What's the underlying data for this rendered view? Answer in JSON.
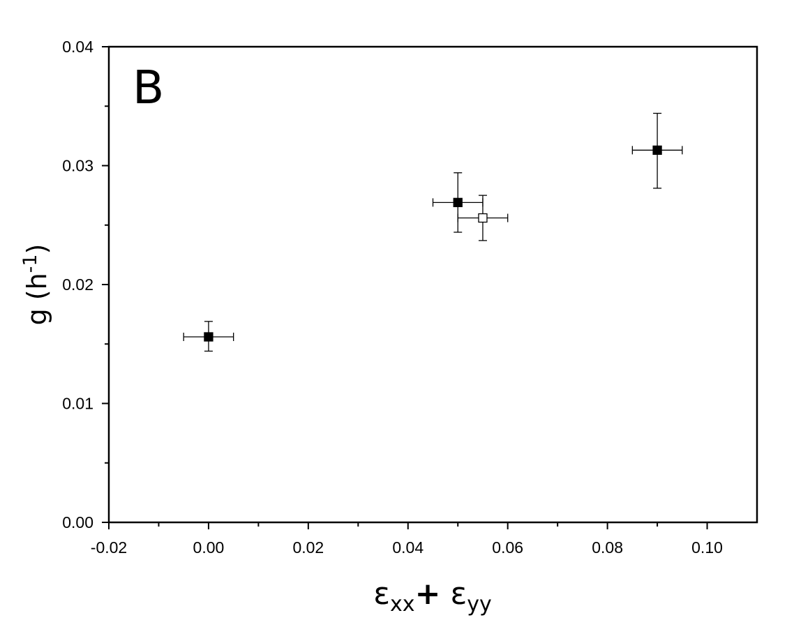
{
  "chart_data": {
    "type": "scatter",
    "panel_label": "B",
    "xlabel": {
      "base1": "ε",
      "sub1": "xx",
      "plus": "+",
      "base2": "ε",
      "sub2": "yy"
    },
    "ylabel": {
      "text": "g (h",
      "sup": "-1",
      "close": ")"
    },
    "xlim": [
      -0.02,
      0.11
    ],
    "ylim": [
      0.0,
      0.04
    ],
    "x_ticks": [
      -0.02,
      0.0,
      0.02,
      0.04,
      0.06,
      0.08,
      0.1
    ],
    "x_tick_labels": [
      "-0.02",
      "0.00",
      "0.02",
      "0.04",
      "0.06",
      "0.08",
      "0.10"
    ],
    "y_ticks": [
      0.0,
      0.01,
      0.02,
      0.03,
      0.04
    ],
    "y_tick_labels": [
      "0.00",
      "0.01",
      "0.02",
      "0.03",
      "0.04"
    ],
    "grid": false,
    "series": [
      {
        "marker": "filled-square",
        "color": "#000000",
        "points": [
          {
            "x": 0.0,
            "y": 0.0156,
            "xerr": 0.005,
            "yerr_low": 0.0012,
            "yerr_high": 0.0013
          },
          {
            "x": 0.05,
            "y": 0.0269,
            "xerr": 0.005,
            "yerr_low": 0.0025,
            "yerr_high": 0.0025
          },
          {
            "x": 0.09,
            "y": 0.0313,
            "xerr": 0.005,
            "yerr_low": 0.0032,
            "yerr_high": 0.0031
          }
        ]
      },
      {
        "marker": "open-square",
        "color": "#000000",
        "points": [
          {
            "x": 0.055,
            "y": 0.0256,
            "xerr": 0.005,
            "yerr_low": 0.0019,
            "yerr_high": 0.0019
          }
        ]
      }
    ]
  }
}
